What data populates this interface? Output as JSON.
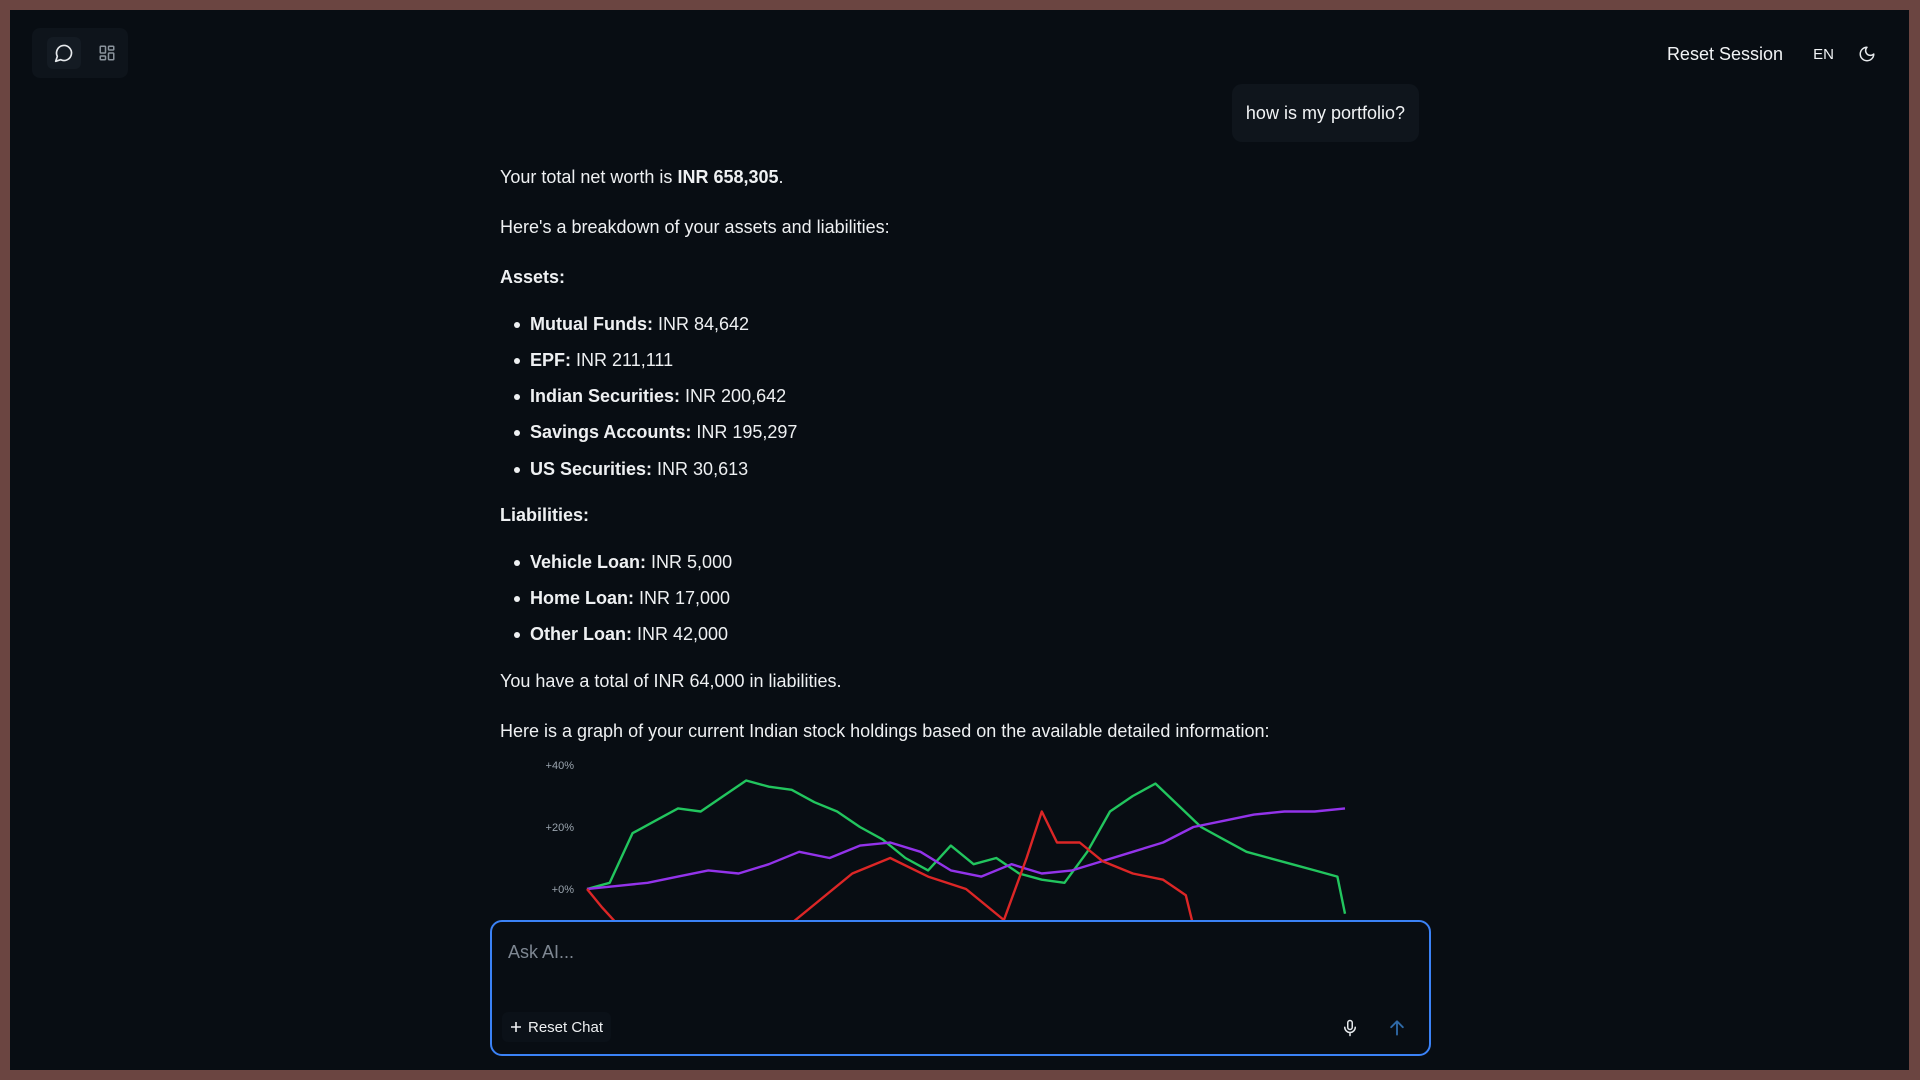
{
  "header": {
    "chat_icon": "chat-bubble-icon",
    "dashboard_icon": "grid-icon",
    "reset_session_label": "Reset Session",
    "language_label": "EN",
    "theme_icon": "moon-icon"
  },
  "conversation": {
    "user_message": "how is my portfolio?",
    "answer": {
      "networth_prefix": "Your total net worth is ",
      "networth_value": "INR 658,305",
      "networth_suffix": ".",
      "breakdown_intro": "Here's a breakdown of your assets and liabilities:",
      "assets_heading": "Assets:",
      "assets": [
        {
          "label": "Mutual Funds:",
          "value": "INR 84,642"
        },
        {
          "label": "EPF:",
          "value": "INR 211,111"
        },
        {
          "label": "Indian Securities:",
          "value": "INR 200,642"
        },
        {
          "label": "Savings Accounts:",
          "value": "INR 195,297"
        },
        {
          "label": "US Securities:",
          "value": "INR 30,613"
        }
      ],
      "liabilities_heading": "Liabilities:",
      "liabilities": [
        {
          "label": "Vehicle Loan:",
          "value": "INR 5,000"
        },
        {
          "label": "Home Loan:",
          "value": "INR 17,000"
        },
        {
          "label": "Other Loan:",
          "value": "INR 42,000"
        }
      ],
      "liabilities_total": "You have a total of INR 64,000 in liabilities.",
      "graph_intro": "Here is a graph of your current Indian stock holdings based on the available detailed information:"
    }
  },
  "chart_data": {
    "type": "line",
    "title": "",
    "xlabel": "",
    "ylabel": "",
    "y_tick_labels": [
      "+40%",
      "+20%",
      "+0%"
    ],
    "ylim": [
      -15,
      42
    ],
    "series": [
      {
        "color": "#22c55e",
        "x": [
          0,
          3,
          6,
          9,
          12,
          15,
          18,
          21,
          24,
          27,
          30,
          33,
          36,
          39,
          42,
          45,
          48,
          51,
          54,
          57,
          60,
          63,
          66,
          69,
          72,
          75,
          78,
          81,
          84,
          87,
          90,
          93,
          96,
          99,
          100
        ],
        "values": [
          0,
          2,
          18,
          22,
          26,
          25,
          30,
          35,
          33,
          32,
          28,
          25,
          20,
          16,
          10,
          6,
          14,
          8,
          10,
          5,
          3,
          2,
          12,
          25,
          30,
          34,
          27,
          20,
          16,
          12,
          10,
          8,
          6,
          4,
          -8
        ]
      },
      {
        "color": "#9333ea",
        "x": [
          0,
          4,
          8,
          12,
          16,
          20,
          24,
          28,
          32,
          36,
          40,
          44,
          48,
          52,
          56,
          60,
          64,
          68,
          72,
          76,
          80,
          84,
          88,
          92,
          96,
          100
        ],
        "values": [
          0,
          1,
          2,
          4,
          6,
          5,
          8,
          12,
          10,
          14,
          15,
          12,
          6,
          4,
          8,
          5,
          6,
          9,
          12,
          15,
          20,
          22,
          24,
          25,
          25,
          26
        ]
      },
      {
        "color": "#dc2626",
        "x": [
          0,
          2,
          5,
          8,
          12,
          16,
          20,
          25,
          30,
          35,
          40,
          45,
          50,
          55,
          58,
          60,
          62,
          65,
          68,
          72,
          76,
          79,
          80
        ],
        "values": [
          0,
          -6,
          -14,
          -20,
          -24,
          -25,
          -22,
          -15,
          -5,
          5,
          10,
          4,
          0,
          -10,
          10,
          25,
          15,
          15,
          9,
          5,
          3,
          -2,
          -12
        ]
      }
    ]
  },
  "composer": {
    "placeholder": "Ask AI...",
    "reset_chat_label": "Reset Chat",
    "mic_icon": "microphone-icon",
    "send_icon": "arrow-up-icon"
  }
}
